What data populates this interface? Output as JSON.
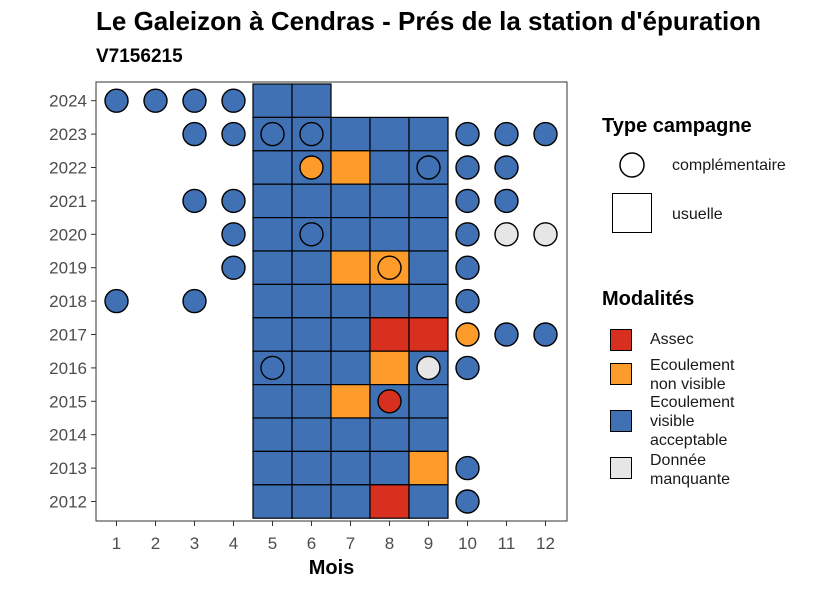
{
  "title": "Le Galeizon à Cendras - Prés de la station d'épuration",
  "subtitle": "V7156215",
  "chart_data": {
    "type": "heatmap",
    "xlabel": "Mois",
    "ylabel": "",
    "x_ticks": [
      "1",
      "2",
      "3",
      "4",
      "5",
      "6",
      "7",
      "8",
      "9",
      "10",
      "11",
      "12"
    ],
    "y_ticks": [
      "2012",
      "2013",
      "2014",
      "2015",
      "2016",
      "2017",
      "2018",
      "2019",
      "2020",
      "2021",
      "2022",
      "2023",
      "2024"
    ],
    "colors": {
      "Assec": "#d7301f",
      "Ecoulement non visible": "#fd9b2b",
      "Ecoulement visible acceptable": "#4071b4",
      "Donnée manquante": "#e6e6e6"
    },
    "usuelle": [
      {
        "year": 2024,
        "months": [
          5,
          6
        ],
        "values": [
          "V",
          "V"
        ]
      },
      {
        "year": 2023,
        "months": [
          5,
          6,
          7,
          8,
          9
        ],
        "values": [
          "V",
          "V",
          "V",
          "V",
          "V"
        ]
      },
      {
        "year": 2022,
        "months": [
          5,
          6,
          7,
          8,
          9
        ],
        "values": [
          "V",
          "V",
          "NV",
          "V",
          "V"
        ]
      },
      {
        "year": 2021,
        "months": [
          5,
          6,
          7,
          8,
          9
        ],
        "values": [
          "V",
          "V",
          "V",
          "V",
          "V"
        ]
      },
      {
        "year": 2020,
        "months": [
          5,
          6,
          7,
          8,
          9
        ],
        "values": [
          "V",
          "V",
          "V",
          "V",
          "V"
        ]
      },
      {
        "year": 2019,
        "months": [
          5,
          6,
          7,
          8,
          9
        ],
        "values": [
          "V",
          "V",
          "NV",
          "NV",
          "V"
        ]
      },
      {
        "year": 2018,
        "months": [
          5,
          6,
          7,
          8,
          9
        ],
        "values": [
          "V",
          "V",
          "V",
          "V",
          "V"
        ]
      },
      {
        "year": 2017,
        "months": [
          5,
          6,
          7,
          8,
          9
        ],
        "values": [
          "V",
          "V",
          "V",
          "A",
          "A"
        ]
      },
      {
        "year": 2016,
        "months": [
          5,
          6,
          7,
          8,
          9
        ],
        "values": [
          "V",
          "V",
          "V",
          "NV",
          "V"
        ]
      },
      {
        "year": 2015,
        "months": [
          5,
          6,
          7,
          8,
          9
        ],
        "values": [
          "V",
          "V",
          "NV",
          "V",
          "V"
        ]
      },
      {
        "year": 2014,
        "months": [
          5,
          6,
          7,
          8,
          9
        ],
        "values": [
          "V",
          "V",
          "V",
          "V",
          "V"
        ]
      },
      {
        "year": 2013,
        "months": [
          5,
          6,
          7,
          8,
          9
        ],
        "values": [
          "V",
          "V",
          "V",
          "V",
          "NV"
        ]
      },
      {
        "year": 2012,
        "months": [
          5,
          6,
          7,
          8,
          9
        ],
        "values": [
          "V",
          "V",
          "V",
          "A",
          "V"
        ]
      }
    ],
    "complementaire": [
      {
        "year": 2024,
        "month": 1,
        "value": "V"
      },
      {
        "year": 2024,
        "month": 2,
        "value": "V"
      },
      {
        "year": 2024,
        "month": 3,
        "value": "V"
      },
      {
        "year": 2024,
        "month": 4,
        "value": "V"
      },
      {
        "year": 2023,
        "month": 3,
        "value": "V"
      },
      {
        "year": 2023,
        "month": 4,
        "value": "V"
      },
      {
        "year": 2023,
        "month": 5,
        "value": "V"
      },
      {
        "year": 2023,
        "month": 6,
        "value": "V"
      },
      {
        "year": 2023,
        "month": 10,
        "value": "V"
      },
      {
        "year": 2023,
        "month": 11,
        "value": "V"
      },
      {
        "year": 2023,
        "month": 12,
        "value": "V"
      },
      {
        "year": 2022,
        "month": 6,
        "value": "NV"
      },
      {
        "year": 2022,
        "month": 9,
        "value": "V"
      },
      {
        "year": 2022,
        "month": 10,
        "value": "V"
      },
      {
        "year": 2022,
        "month": 11,
        "value": "V"
      },
      {
        "year": 2021,
        "month": 3,
        "value": "V"
      },
      {
        "year": 2021,
        "month": 4,
        "value": "V"
      },
      {
        "year": 2021,
        "month": 10,
        "value": "V"
      },
      {
        "year": 2021,
        "month": 11,
        "value": "V"
      },
      {
        "year": 2020,
        "month": 4,
        "value": "V"
      },
      {
        "year": 2020,
        "month": 6,
        "value": "V"
      },
      {
        "year": 2020,
        "month": 10,
        "value": "V"
      },
      {
        "year": 2020,
        "month": 11,
        "value": "M"
      },
      {
        "year": 2020,
        "month": 12,
        "value": "M"
      },
      {
        "year": 2019,
        "month": 4,
        "value": "V"
      },
      {
        "year": 2019,
        "month": 8,
        "value": "NV"
      },
      {
        "year": 2019,
        "month": 10,
        "value": "V"
      },
      {
        "year": 2018,
        "month": 1,
        "value": "V"
      },
      {
        "year": 2018,
        "month": 3,
        "value": "V"
      },
      {
        "year": 2018,
        "month": 10,
        "value": "V"
      },
      {
        "year": 2017,
        "month": 10,
        "value": "NV"
      },
      {
        "year": 2017,
        "month": 11,
        "value": "V"
      },
      {
        "year": 2017,
        "month": 12,
        "value": "V"
      },
      {
        "year": 2016,
        "month": 5,
        "value": "V"
      },
      {
        "year": 2016,
        "month": 9,
        "value": "M"
      },
      {
        "year": 2016,
        "month": 10,
        "value": "V"
      },
      {
        "year": 2015,
        "month": 8,
        "value": "A"
      },
      {
        "year": 2013,
        "month": 10,
        "value": "V"
      },
      {
        "year": 2012,
        "month": 10,
        "value": "V"
      }
    ],
    "code_to_modalite": {
      "A": "Assec",
      "NV": "Ecoulement non visible",
      "V": "Ecoulement visible acceptable",
      "M": "Donnée manquante"
    }
  },
  "legend": {
    "type_title": "Type campagne",
    "type_items": [
      "complémentaire",
      "usuelle"
    ],
    "mod_title": "Modalités",
    "mod_items": [
      {
        "lines": [
          "Assec"
        ],
        "color": "#d7301f"
      },
      {
        "lines": [
          "Ecoulement",
          "non visible"
        ],
        "color": "#fd9b2b"
      },
      {
        "lines": [
          "Ecoulement",
          "visible",
          "acceptable"
        ],
        "color": "#4071b4"
      },
      {
        "lines": [
          "Donnée",
          "manquante"
        ],
        "color": "#e6e6e6"
      }
    ]
  }
}
